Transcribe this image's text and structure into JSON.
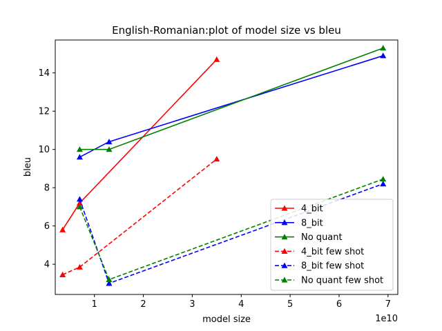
{
  "chart_data": {
    "type": "line",
    "title": "English-Romanian:plot of model size vs bleu",
    "xlabel": "model size",
    "ylabel": "bleu",
    "x_offset_label": "1e10",
    "x_scale": 10000000000,
    "xlim": [
      0.2,
      7.2
    ],
    "ylim": [
      2.42,
      15.72
    ],
    "x_ticks": [
      1,
      2,
      3,
      4,
      5,
      6,
      7
    ],
    "y_ticks": [
      4,
      6,
      8,
      10,
      12,
      14
    ],
    "legend_position": "lower-right",
    "grid": false,
    "series": [
      {
        "name": "4_bit",
        "color": "#ff0000",
        "dashed": false,
        "x": [
          0.35,
          0.7,
          3.5
        ],
        "y": [
          5.8,
          7.2,
          14.7
        ]
      },
      {
        "name": "8_bit",
        "color": "#0000ff",
        "dashed": false,
        "x": [
          0.7,
          1.3,
          6.9
        ],
        "y": [
          9.6,
          10.4,
          14.9
        ]
      },
      {
        "name": "No quant",
        "color": "#008000",
        "dashed": false,
        "x": [
          0.7,
          1.3,
          6.9
        ],
        "y": [
          10.0,
          10.0,
          15.3
        ]
      },
      {
        "name": "4_bit few shot",
        "color": "#ff0000",
        "dashed": true,
        "x": [
          0.35,
          0.7,
          3.5
        ],
        "y": [
          3.45,
          3.85,
          9.5
        ]
      },
      {
        "name": "8_bit few shot",
        "color": "#0000ff",
        "dashed": true,
        "x": [
          0.7,
          1.3,
          6.9
        ],
        "y": [
          7.4,
          3.0,
          8.2
        ]
      },
      {
        "name": "No quant few shot",
        "color": "#008000",
        "dashed": true,
        "x": [
          0.7,
          1.3,
          6.9
        ],
        "y": [
          7.0,
          3.2,
          8.45
        ]
      }
    ]
  }
}
